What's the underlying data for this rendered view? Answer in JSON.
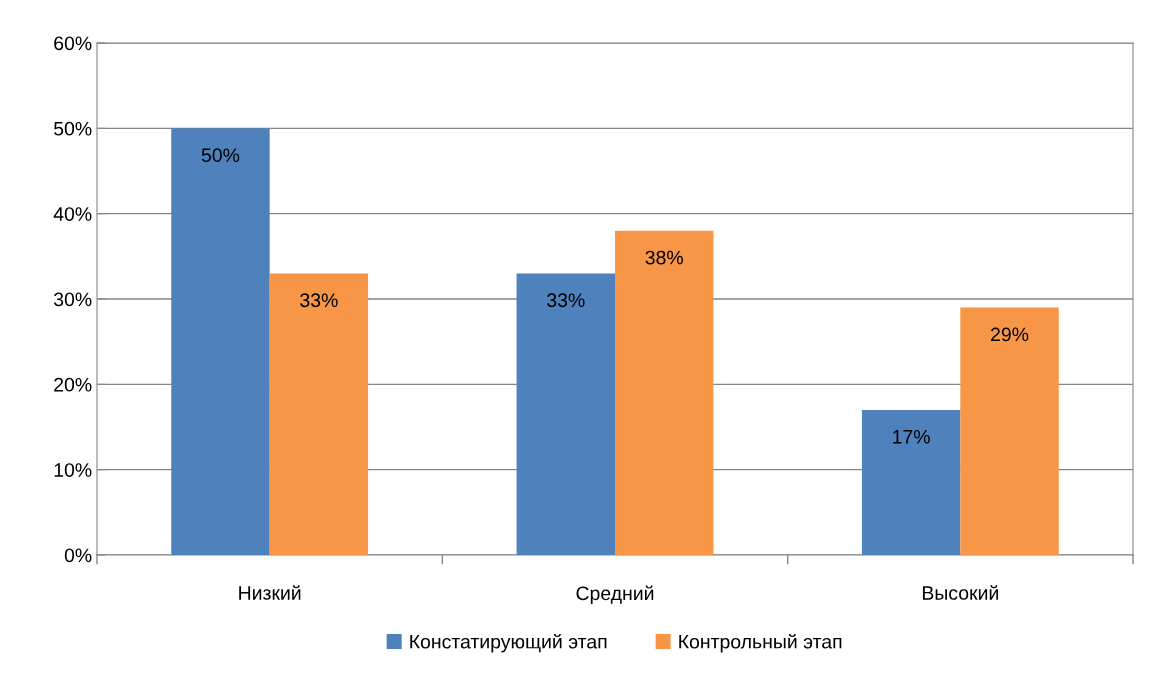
{
  "chart_data": {
    "type": "bar",
    "categories": [
      "Низкий",
      "Средний",
      "Высокий"
    ],
    "series": [
      {
        "name": "Констатирующий этап",
        "color": "#4f81bd",
        "values": [
          50,
          33,
          17
        ],
        "value_labels": [
          "50%",
          "33%",
          "17%"
        ]
      },
      {
        "name": "Контрольный этап",
        "color": "#f79646",
        "values": [
          33,
          38,
          29
        ],
        "value_labels": [
          "33%",
          "38%",
          "29%"
        ]
      }
    ],
    "ylim": [
      0,
      60
    ],
    "yticks": [
      {
        "value": 0,
        "label": "0%"
      },
      {
        "value": 10,
        "label": "10%"
      },
      {
        "value": 20,
        "label": "20%"
      },
      {
        "value": 30,
        "label": "30%"
      },
      {
        "value": 40,
        "label": "40%"
      },
      {
        "value": 50,
        "label": "50%"
      },
      {
        "value": 60,
        "label": "60%"
      }
    ],
    "grid": "y",
    "legend": "bottom"
  }
}
